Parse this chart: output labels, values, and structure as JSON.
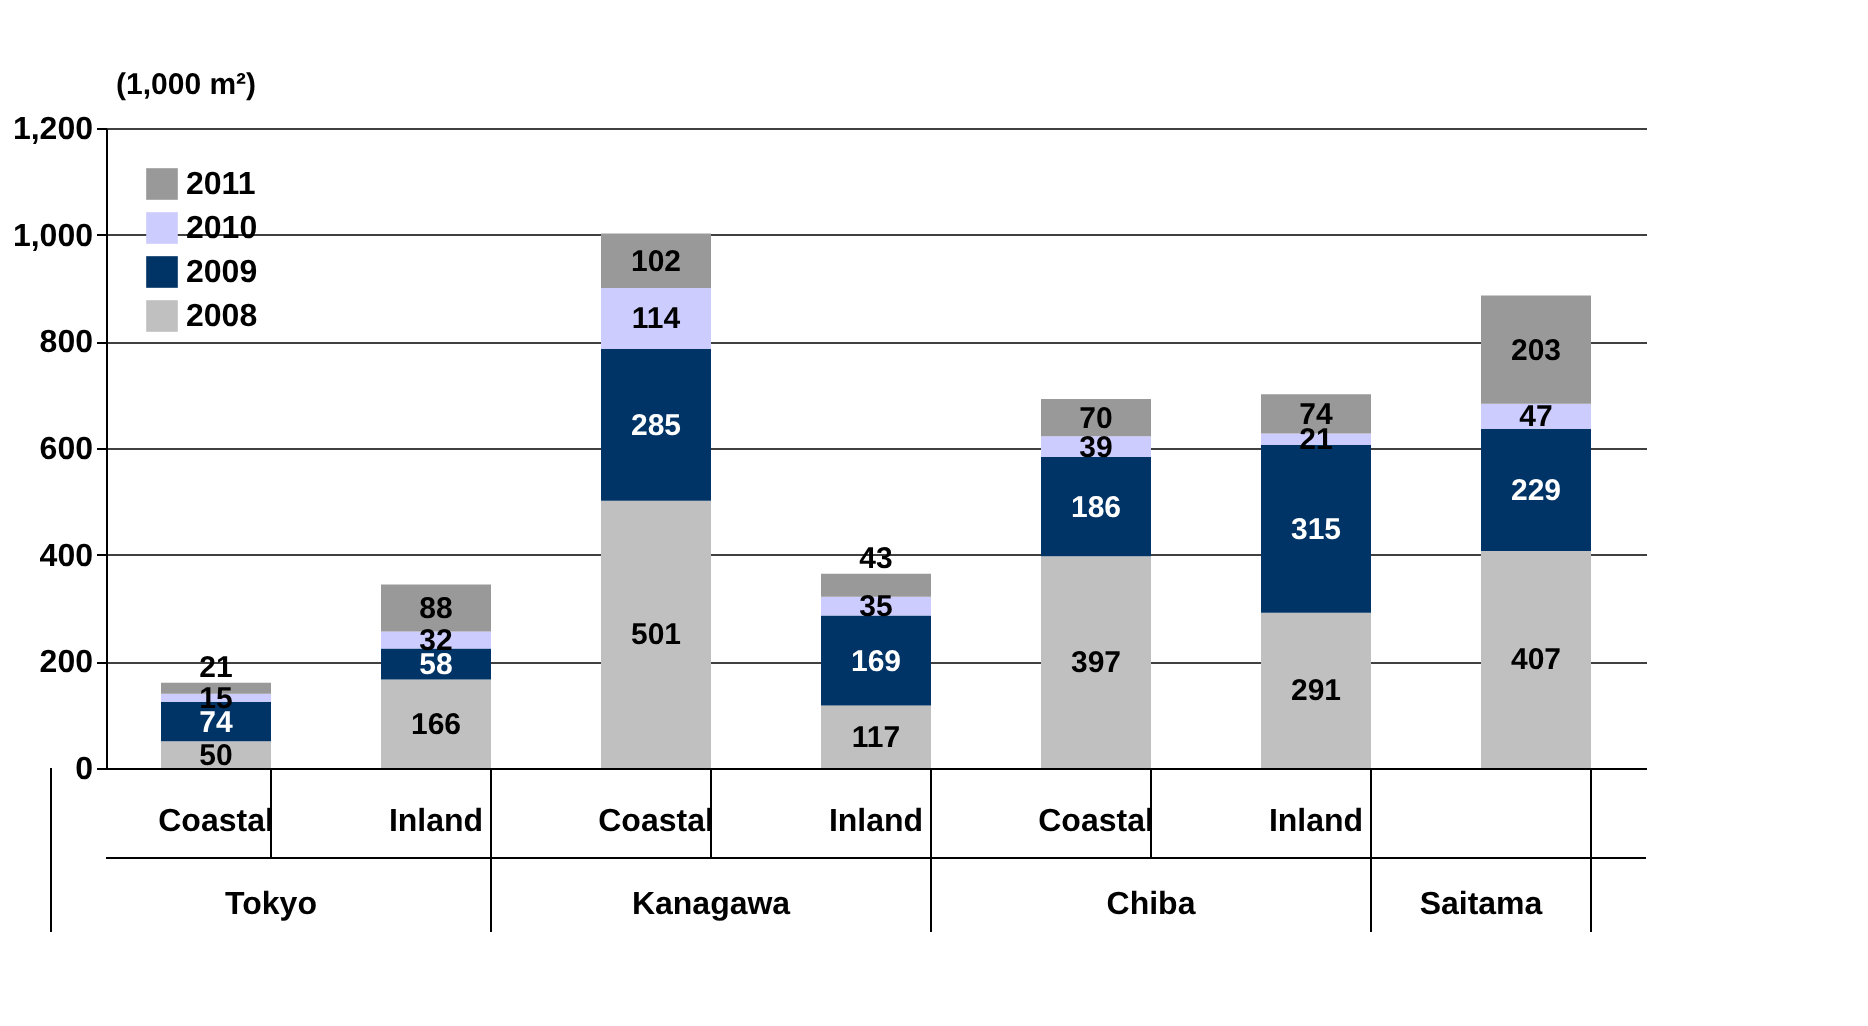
{
  "chart_data": {
    "type": "bar",
    "stacked": true,
    "ylabel": "(1,000 m²)",
    "categories": [
      "Coastal",
      "Inland",
      "Coastal",
      "Inland",
      "Coastal",
      "Inland",
      null
    ],
    "series": [
      {
        "name": "2008",
        "color": "#c0c0c0",
        "values": [
          50,
          166,
          501,
          117,
          397,
          291,
          407
        ]
      },
      {
        "name": "2009",
        "color": "#003366",
        "values": [
          74,
          58,
          285,
          169,
          186,
          315,
          229
        ]
      },
      {
        "name": "2010",
        "color": "#ccccff",
        "values": [
          15,
          32,
          114,
          35,
          39,
          21,
          47
        ]
      },
      {
        "name": "2011",
        "color": "#999999",
        "values": [
          21,
          88,
          102,
          43,
          70,
          74,
          203
        ]
      }
    ],
    "ylim": [
      0,
      1200
    ],
    "yticks": [
      0,
      200,
      400,
      600,
      800,
      {
        "value": 1000,
        "label": "1,000"
      },
      {
        "value": 1200,
        "label": "1,200"
      }
    ],
    "grid": "y",
    "legend": "top left",
    "data_labels": true,
    "annotations": [
      "Tokyo",
      "Kanagawa",
      "Chiba",
      "Saitama"
    ]
  }
}
